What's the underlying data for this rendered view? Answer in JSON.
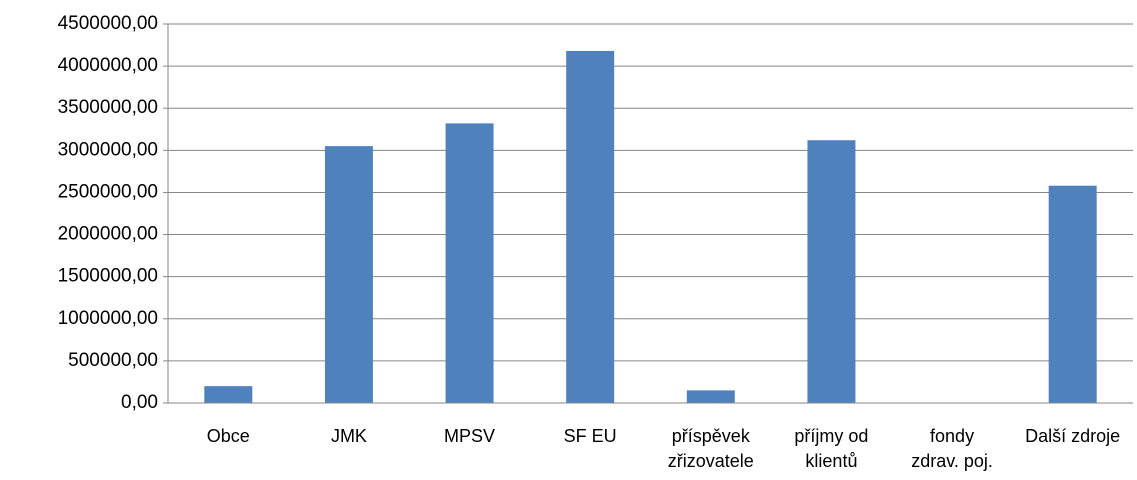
{
  "chart_data": {
    "type": "bar",
    "categories": [
      "Obce",
      "JMK",
      "MPSV",
      "SF EU",
      "příspěvek zřizovatele",
      "příjmy od klientů",
      "fondy zdrav. poj.",
      "Další zdroje"
    ],
    "values": [
      200000,
      3050000,
      3320000,
      4180000,
      150000,
      3120000,
      0,
      2580000
    ],
    "color": "#4f81bd",
    "ylim": [
      0,
      4500000
    ],
    "yticks": [
      {
        "value": 0,
        "label": "0,00"
      },
      {
        "value": 500000,
        "label": "500000,00"
      },
      {
        "value": 1000000,
        "label": "1000000,00"
      },
      {
        "value": 1500000,
        "label": "1500000,00"
      },
      {
        "value": 2000000,
        "label": "2000000,00"
      },
      {
        "value": 2500000,
        "label": "2500000,00"
      },
      {
        "value": 3000000,
        "label": "3000000,00"
      },
      {
        "value": 3500000,
        "label": "3500000,00"
      },
      {
        "value": 4000000,
        "label": "4000000,00"
      },
      {
        "value": 4500000,
        "label": "4500000,00"
      }
    ],
    "grid": true
  }
}
